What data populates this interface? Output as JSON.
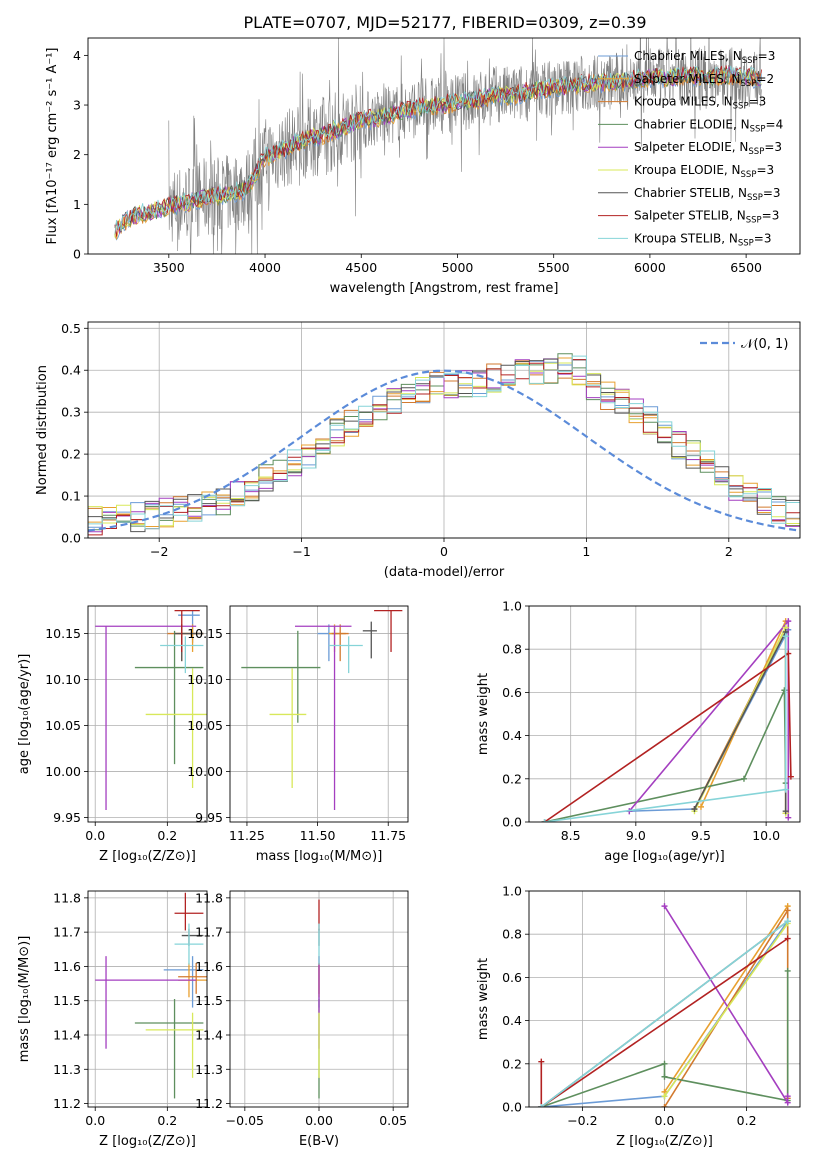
{
  "figure_title": "PLATE=0707, MJD=52177, FIBERID=0309, z=0.39",
  "colors": {
    "grid": "#b0b0b0",
    "normal_curve": "#5b8bd9"
  },
  "models": [
    {
      "label": "Chabrier MILES, N",
      "sub": "SSP",
      "tail": "=3",
      "color": "#6b9bd6"
    },
    {
      "label": "Salpeter MILES, N",
      "sub": "SSP",
      "tail": "=2",
      "color": "#e8a030"
    },
    {
      "label": "Kroupa MILES, N",
      "sub": "SSP",
      "tail": "=3",
      "color": "#d27a2f"
    },
    {
      "label": "Chabrier ELODIE, N",
      "sub": "SSP",
      "tail": "=4",
      "color": "#5e8f5e"
    },
    {
      "label": "Salpeter ELODIE, N",
      "sub": "SSP",
      "tail": "=3",
      "color": "#a43fc0"
    },
    {
      "label": "Kroupa ELODIE, N",
      "sub": "SSP",
      "tail": "=3",
      "color": "#d8e85a"
    },
    {
      "label": "Chabrier STELIB, N",
      "sub": "SSP",
      "tail": "=3",
      "color": "#555555"
    },
    {
      "label": "Salpeter STELIB, N",
      "sub": "SSP",
      "tail": "=3",
      "color": "#b22222"
    },
    {
      "label": "Kroupa STELIB, N",
      "sub": "SSP",
      "tail": "=3",
      "color": "#86d4d8"
    }
  ],
  "chart_data": [
    {
      "id": "spectrum",
      "type": "line",
      "xlabel": "wavelength [Angstrom, rest frame]",
      "ylabel": "Flux [fλ10⁻¹⁷ erg cm⁻² s⁻¹ A⁻¹]",
      "xlim": [
        3080,
        6780
      ],
      "ylim": [
        0,
        4.35
      ],
      "xticks": [
        3500,
        4000,
        4500,
        5000,
        5500,
        6000,
        6500
      ],
      "yticks": [
        0,
        1,
        2,
        3,
        4
      ],
      "grid": false,
      "legend": "upper right",
      "observed_color": "#808080",
      "continuum_knots": {
        "x": [
          3220,
          3300,
          3400,
          3500,
          3600,
          3700,
          3800,
          3900,
          3950,
          4000,
          4100,
          4200,
          4300,
          4400,
          4500,
          4600,
          4700,
          4800,
          4900,
          5000,
          5100,
          5200,
          5300,
          5400,
          5500,
          5600,
          5700,
          5800,
          5900,
          6000,
          6100,
          6200,
          6300,
          6400,
          6500,
          6580
        ],
        "y": [
          0.45,
          0.75,
          0.85,
          0.95,
          1.05,
          1.15,
          1.2,
          1.3,
          1.6,
          1.95,
          2.1,
          2.3,
          2.4,
          2.55,
          2.7,
          2.75,
          2.85,
          2.95,
          3.0,
          3.05,
          3.1,
          3.2,
          3.2,
          3.3,
          3.35,
          3.4,
          3.45,
          3.45,
          3.5,
          3.55,
          3.55,
          3.6,
          3.55,
          3.6,
          3.55,
          3.55
        ]
      }
    },
    {
      "id": "residual_hist",
      "type": "histogram",
      "xlabel": "(data-model)/error",
      "ylabel": "Normed distribution",
      "xlim": [
        -2.5,
        2.5
      ],
      "ylim": [
        0,
        0.515
      ],
      "xticks": [
        -2,
        -1,
        0,
        1,
        2
      ],
      "yticks": [
        0.0,
        0.1,
        0.2,
        0.3,
        0.4,
        0.5
      ],
      "grid": true,
      "legend_label": "𝒩(0, 1)",
      "bins": 50,
      "profile": [
        0.04,
        0.045,
        0.05,
        0.05,
        0.055,
        0.06,
        0.065,
        0.075,
        0.08,
        0.085,
        0.1,
        0.12,
        0.14,
        0.16,
        0.18,
        0.2,
        0.23,
        0.25,
        0.27,
        0.29,
        0.31,
        0.33,
        0.35,
        0.35,
        0.36,
        0.36,
        0.37,
        0.37,
        0.38,
        0.39,
        0.4,
        0.4,
        0.4,
        0.41,
        0.4,
        0.36,
        0.34,
        0.32,
        0.3,
        0.28,
        0.26,
        0.22,
        0.2,
        0.18,
        0.14,
        0.12,
        0.1,
        0.09,
        0.07,
        0.06
      ]
    },
    {
      "id": "age_vs_Z",
      "type": "errorbar",
      "xlabel": "Z [log₁₀(Z/Z⊙)]",
      "ylabel": "age  [log₁₀(age/yr)]",
      "xlim": [
        -0.02,
        0.31
      ],
      "ylim": [
        9.945,
        10.18
      ],
      "xticks": [
        0.0,
        0.2
      ],
      "yticks": [
        9.95,
        10.0,
        10.05,
        10.1,
        10.15
      ],
      "grid": true,
      "points": [
        {
          "x": 0.27,
          "y": 10.17,
          "xerr": [
            0.04,
            0.02
          ],
          "yerr": [
            0.03,
            0.005
          ]
        },
        {
          "x": 0.27,
          "y": 10.15,
          "xerr": [
            0.05,
            0.03
          ],
          "yerr": [
            0.02,
            0.01
          ]
        },
        {
          "x": 0.24,
          "y": 10.15,
          "xerr": [
            0.04,
            0.06
          ],
          "yerr": [
            0.03,
            0.01
          ]
        },
        {
          "x": 0.22,
          "y": 10.113,
          "xerr": [
            0.11,
            0.08
          ],
          "yerr": [
            0.105,
            0.04
          ]
        },
        {
          "x": 0.03,
          "y": 10.158,
          "xerr": [
            0.03,
            0.25
          ],
          "yerr": [
            0.2,
            0.0
          ]
        },
        {
          "x": 0.27,
          "y": 10.062,
          "xerr": [
            0.13,
            0.04
          ],
          "yerr": [
            0.08,
            0.05
          ]
        },
        {
          "x": 0.24,
          "y": 10.15,
          "xerr": [
            0.02,
            0.06
          ],
          "yerr": [
            0.03,
            0.01
          ]
        },
        {
          "x": 0.24,
          "y": 10.175,
          "xerr": [
            0.02,
            0.05
          ],
          "yerr": [
            0.045,
            0.0
          ]
        },
        {
          "x": 0.25,
          "y": 10.137,
          "xerr": [
            0.07,
            0.05
          ],
          "yerr": [
            0.03,
            0.01
          ]
        }
      ]
    },
    {
      "id": "age_vs_mass",
      "type": "errorbar",
      "xlabel": "mass [log₁₀(M/M⊙)]",
      "ylabel": "",
      "xlim": [
        11.19,
        11.82
      ],
      "ylim": [
        9.945,
        10.18
      ],
      "xticks": [
        11.25,
        11.5,
        11.75
      ],
      "yticks": [
        9.95,
        10.0,
        10.05,
        10.1,
        10.15
      ],
      "grid": true,
      "points": [
        {
          "x": 11.54,
          "y": 10.15,
          "xerr": [
            0.04,
            0.03
          ],
          "yerr": [
            0.03,
            0.01
          ]
        },
        {
          "x": 11.56,
          "y": 10.15,
          "xerr": [
            0.02,
            0.04
          ],
          "yerr": [
            0.02,
            0.01
          ]
        },
        {
          "x": 11.58,
          "y": 10.15,
          "xerr": [
            0.03,
            0.03
          ],
          "yerr": [
            0.03,
            0.01
          ]
        },
        {
          "x": 11.43,
          "y": 10.113,
          "xerr": [
            0.2,
            0.08
          ],
          "yerr": [
            0.06,
            0.04
          ]
        },
        {
          "x": 11.56,
          "y": 10.158,
          "xerr": [
            0.14,
            0.06
          ],
          "yerr": [
            0.2,
            0.0
          ]
        },
        {
          "x": 11.41,
          "y": 10.062,
          "xerr": [
            0.08,
            0.05
          ],
          "yerr": [
            0.08,
            0.05
          ]
        },
        {
          "x": 11.69,
          "y": 10.153,
          "xerr": [
            0.03,
            0.02
          ],
          "yerr": [
            0.03,
            0.01
          ]
        },
        {
          "x": 11.76,
          "y": 10.175,
          "xerr": [
            0.06,
            0.04
          ],
          "yerr": [
            0.045,
            0.0
          ]
        },
        {
          "x": 11.61,
          "y": 10.137,
          "xerr": [
            0.07,
            0.05
          ],
          "yerr": [
            0.03,
            0.01
          ]
        }
      ]
    },
    {
      "id": "massweight_vs_age",
      "type": "line",
      "xlabel": "age  [log₁₀(age/yr)]",
      "ylabel": "mass weight",
      "xlim": [
        8.18,
        10.26
      ],
      "ylim": [
        0,
        1.0
      ],
      "xticks": [
        8.5,
        9.0,
        9.5,
        10.0
      ],
      "yticks": [
        0.0,
        0.2,
        0.4,
        0.6,
        0.8,
        1.0
      ],
      "grid": true,
      "series": [
        {
          "x": [
            8.95,
            9.45,
            10.17
          ],
          "y": [
            0.05,
            0.06,
            0.89
          ]
        },
        {
          "x": [
            9.5,
            10.15
          ],
          "y": [
            0.07,
            0.93
          ]
        },
        {
          "x": [
            9.45,
            10.15,
            10.15
          ],
          "y": [
            0.06,
            0.9,
            0.04
          ]
        },
        {
          "x": [
            8.3,
            9.83,
            10.14,
            10.15
          ],
          "y": [
            0.0,
            0.2,
            0.61,
            0.18
          ]
        },
        {
          "x": [
            8.95,
            10.17,
            10.17
          ],
          "y": [
            0.05,
            0.93,
            0.02
          ]
        },
        {
          "x": [
            9.45,
            10.15,
            10.15
          ],
          "y": [
            0.05,
            0.9,
            0.04
          ]
        },
        {
          "x": [
            9.45,
            10.15,
            10.15
          ],
          "y": [
            0.06,
            0.88,
            0.05
          ]
        },
        {
          "x": [
            8.3,
            10.17,
            10.19
          ],
          "y": [
            0.0,
            0.78,
            0.21
          ]
        },
        {
          "x": [
            8.3,
            10.15,
            10.15
          ],
          "y": [
            0.0,
            0.15,
            0.86
          ]
        }
      ]
    },
    {
      "id": "mass_vs_Z",
      "type": "errorbar",
      "xlabel": "Z [log₁₀(Z/Z⊙)]",
      "ylabel": "mass [log₁₀(M/M⊙)]",
      "xlim": [
        -0.02,
        0.31
      ],
      "ylim": [
        11.19,
        11.82
      ],
      "xticks": [
        0.0,
        0.2
      ],
      "yticks": [
        11.2,
        11.3,
        11.4,
        11.5,
        11.6,
        11.7,
        11.8
      ],
      "grid": true,
      "points": [
        {
          "x": 0.27,
          "y": 11.59,
          "xerr": [
            0.08,
            0.03
          ],
          "yerr": [
            0.11,
            0.04
          ]
        },
        {
          "x": 0.26,
          "y": 11.56,
          "xerr": [
            0.03,
            0.05
          ],
          "yerr": [
            0.05,
            0.05
          ]
        },
        {
          "x": 0.28,
          "y": 11.57,
          "xerr": [
            0.05,
            0.03
          ],
          "yerr": [
            0.05,
            0.04
          ]
        },
        {
          "x": 0.22,
          "y": 11.435,
          "xerr": [
            0.11,
            0.08
          ],
          "yerr": [
            0.22,
            0.07
          ]
        },
        {
          "x": 0.03,
          "y": 11.56,
          "xerr": [
            0.03,
            0.25
          ],
          "yerr": [
            0.2,
            0.07
          ]
        },
        {
          "x": 0.27,
          "y": 11.415,
          "xerr": [
            0.13,
            0.03
          ],
          "yerr": [
            0.14,
            0.05
          ]
        },
        {
          "x": 0.26,
          "y": 11.69,
          "xerr": [
            0.02,
            0.04
          ],
          "yerr": [
            0.03,
            0.02
          ]
        },
        {
          "x": 0.25,
          "y": 11.755,
          "xerr": [
            0.03,
            0.05
          ],
          "yerr": [
            0.05,
            0.06
          ]
        },
        {
          "x": 0.26,
          "y": 11.665,
          "xerr": [
            0.04,
            0.04
          ],
          "yerr": [
            0.06,
            0.06
          ]
        }
      ]
    },
    {
      "id": "mass_vs_EBV",
      "type": "errorbar",
      "xlabel": "E(B-V)",
      "ylabel": "",
      "xlim": [
        -0.06,
        0.06
      ],
      "ylim": [
        11.19,
        11.82
      ],
      "xticks": [
        -0.05,
        0.0,
        0.05
      ],
      "yticks": [
        11.2,
        11.3,
        11.4,
        11.5,
        11.6,
        11.7,
        11.8
      ],
      "grid": true,
      "points": [
        {
          "x": 0.0,
          "y": 11.59,
          "xerr": [
            0,
            0
          ],
          "yerr": [
            0.11,
            0.04
          ]
        },
        {
          "x": 0.0,
          "y": 11.56,
          "xerr": [
            0,
            0
          ],
          "yerr": [
            0.05,
            0.05
          ]
        },
        {
          "x": 0.0,
          "y": 11.57,
          "xerr": [
            0,
            0
          ],
          "yerr": [
            0.05,
            0.04
          ]
        },
        {
          "x": 0.0,
          "y": 11.435,
          "xerr": [
            0,
            0
          ],
          "yerr": [
            0.22,
            0.07
          ]
        },
        {
          "x": 0.0,
          "y": 11.56,
          "xerr": [
            0,
            0
          ],
          "yerr": [
            0.2,
            0.07
          ]
        },
        {
          "x": 0.0,
          "y": 11.415,
          "xerr": [
            0,
            0
          ],
          "yerr": [
            0.14,
            0.05
          ]
        },
        {
          "x": 0.0,
          "y": 11.69,
          "xerr": [
            0,
            0
          ],
          "yerr": [
            0.03,
            0.02
          ]
        },
        {
          "x": 0.0,
          "y": 11.755,
          "xerr": [
            0,
            0
          ],
          "yerr": [
            0.05,
            0.04
          ]
        },
        {
          "x": 0.0,
          "y": 11.665,
          "xerr": [
            0,
            0
          ],
          "yerr": [
            0.06,
            0.06
          ]
        }
      ]
    },
    {
      "id": "massweight_vs_Z",
      "type": "line",
      "xlabel": "Z [log₁₀(Z/Z⊙)]",
      "ylabel": "mass weight",
      "xlim": [
        -0.33,
        0.33
      ],
      "ylim": [
        0,
        1.0
      ],
      "xticks": [
        -0.2,
        0.0,
        0.2
      ],
      "yticks": [
        0.0,
        0.2,
        0.4,
        0.6,
        0.8,
        1.0
      ],
      "grid": true,
      "series": [
        {
          "x": [
            -0.3,
            0.0,
            0.3
          ],
          "y": [
            0.0,
            0.05,
            0.86
          ]
        },
        {
          "x": [
            0.0,
            0.3
          ],
          "y": [
            0.07,
            0.93
          ]
        },
        {
          "x": [
            0.0,
            0.3,
            0.3
          ],
          "y": [
            0.0,
            0.91,
            0.04
          ]
        },
        {
          "x": [
            -0.3,
            0.0,
            0.0,
            0.3,
            0.3
          ],
          "y": [
            0.0,
            0.2,
            0.14,
            0.03,
            0.63
          ]
        },
        {
          "x": [
            0.0,
            0.3,
            0.3
          ],
          "y": [
            0.93,
            0.02,
            0.05
          ]
        },
        {
          "x": [
            0.0,
            0.3
          ],
          "y": [
            0.05,
            0.85
          ]
        },
        {
          "x": [
            -0.3,
            0.3
          ],
          "y": [
            0.0,
            0.86
          ]
        },
        {
          "x": [
            -0.3,
            -0.3,
            0.3
          ],
          "y": [
            0.21,
            0.0,
            0.78
          ]
        },
        {
          "x": [
            -0.3,
            0.3
          ],
          "y": [
            0.0,
            0.86
          ]
        }
      ]
    }
  ]
}
